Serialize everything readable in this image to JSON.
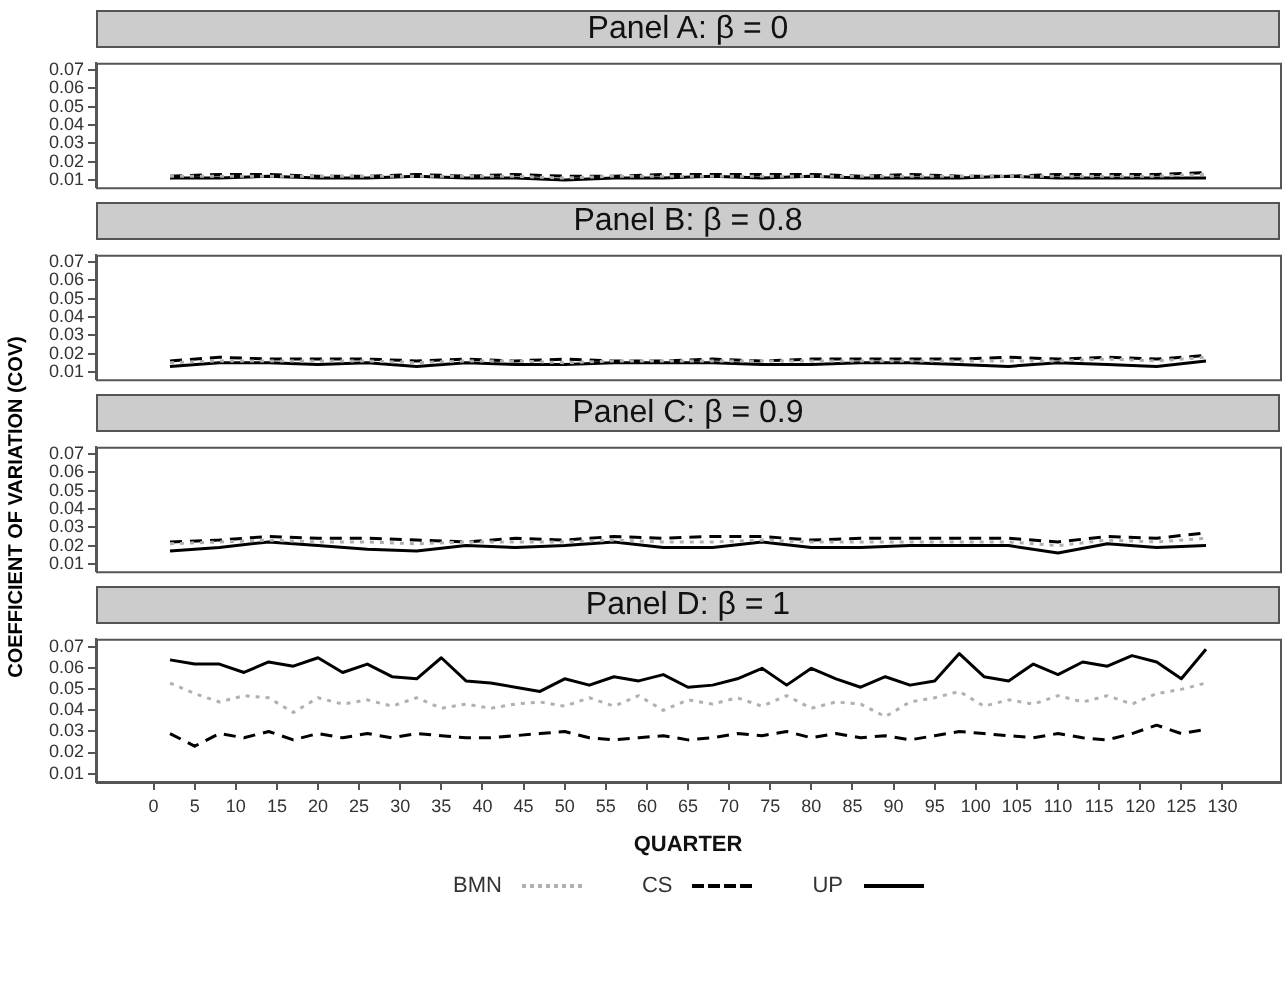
{
  "chart_data": [
    {
      "type": "line",
      "title": "Panel A: β = 0",
      "tick_labels": "y",
      "x": [
        2,
        8,
        14,
        20,
        26,
        32,
        38,
        44,
        50,
        56,
        62,
        68,
        74,
        80,
        86,
        92,
        98,
        104,
        110,
        116,
        122,
        128
      ],
      "xlim": [
        -7,
        137
      ],
      "xticks": [
        0,
        5,
        10,
        15,
        20,
        25,
        30,
        35,
        40,
        45,
        50,
        55,
        60,
        65,
        70,
        75,
        80,
        85,
        90,
        95,
        100,
        105,
        110,
        115,
        120,
        125,
        130
      ],
      "ylim": [
        0.006,
        0.074
      ],
      "yticks": [
        0.01,
        0.02,
        0.03,
        0.04,
        0.05,
        0.06,
        0.07
      ],
      "series": [
        {
          "color": "#b0b0b0",
          "line_style": "dotted",
          "values": [
            0.012,
            0.012,
            0.012,
            0.012,
            0.012,
            0.012,
            0.012,
            0.012,
            0.011,
            0.012,
            0.012,
            0.012,
            0.012,
            0.012,
            0.012,
            0.012,
            0.012,
            0.012,
            0.012,
            0.012,
            0.012,
            0.013
          ]
        },
        {
          "color": "#000000",
          "line_style": "dashed",
          "values": [
            0.012,
            0.013,
            0.013,
            0.012,
            0.012,
            0.013,
            0.012,
            0.013,
            0.012,
            0.012,
            0.013,
            0.013,
            0.013,
            0.013,
            0.012,
            0.013,
            0.012,
            0.012,
            0.013,
            0.013,
            0.013,
            0.014
          ]
        },
        {
          "color": "#000000",
          "line_style": "solid",
          "values": [
            0.011,
            0.011,
            0.012,
            0.011,
            0.011,
            0.012,
            0.011,
            0.011,
            0.01,
            0.011,
            0.011,
            0.012,
            0.011,
            0.012,
            0.011,
            0.011,
            0.011,
            0.012,
            0.011,
            0.011,
            0.011,
            0.011
          ]
        }
      ]
    },
    {
      "type": "line",
      "title": "Panel B: β = 0.8",
      "tick_labels": "y",
      "x": [
        2,
        8,
        14,
        20,
        26,
        32,
        38,
        44,
        50,
        56,
        62,
        68,
        74,
        80,
        86,
        92,
        98,
        104,
        110,
        116,
        122,
        128
      ],
      "xlim": [
        -7,
        137
      ],
      "xticks": [
        0,
        5,
        10,
        15,
        20,
        25,
        30,
        35,
        40,
        45,
        50,
        55,
        60,
        65,
        70,
        75,
        80,
        85,
        90,
        95,
        100,
        105,
        110,
        115,
        120,
        125,
        130
      ],
      "ylim": [
        0.006,
        0.074
      ],
      "yticks": [
        0.01,
        0.02,
        0.03,
        0.04,
        0.05,
        0.06,
        0.07
      ],
      "series": [
        {
          "color": "#b0b0b0",
          "line_style": "dotted",
          "values": [
            0.015,
            0.016,
            0.016,
            0.016,
            0.016,
            0.015,
            0.016,
            0.016,
            0.015,
            0.016,
            0.016,
            0.016,
            0.016,
            0.016,
            0.016,
            0.016,
            0.016,
            0.016,
            0.016,
            0.017,
            0.016,
            0.018
          ]
        },
        {
          "color": "#000000",
          "line_style": "dashed",
          "values": [
            0.016,
            0.018,
            0.017,
            0.017,
            0.017,
            0.016,
            0.017,
            0.016,
            0.017,
            0.016,
            0.016,
            0.017,
            0.016,
            0.017,
            0.017,
            0.017,
            0.017,
            0.018,
            0.017,
            0.018,
            0.017,
            0.019
          ]
        },
        {
          "color": "#000000",
          "line_style": "solid",
          "values": [
            0.013,
            0.015,
            0.015,
            0.014,
            0.015,
            0.013,
            0.015,
            0.014,
            0.014,
            0.015,
            0.015,
            0.015,
            0.014,
            0.014,
            0.015,
            0.015,
            0.014,
            0.013,
            0.015,
            0.014,
            0.013,
            0.016
          ]
        }
      ]
    },
    {
      "type": "line",
      "title": "Panel C: β = 0.9",
      "ylabel": "COEFFICIENT OF VARIATION (COV)",
      "tick_labels": "y",
      "x": [
        2,
        8,
        14,
        20,
        26,
        32,
        38,
        44,
        50,
        56,
        62,
        68,
        74,
        80,
        86,
        92,
        98,
        104,
        110,
        116,
        122,
        128
      ],
      "xlim": [
        -7,
        137
      ],
      "xticks": [
        0,
        5,
        10,
        15,
        20,
        25,
        30,
        35,
        40,
        45,
        50,
        55,
        60,
        65,
        70,
        75,
        80,
        85,
        90,
        95,
        100,
        105,
        110,
        115,
        120,
        125,
        130
      ],
      "ylim": [
        0.006,
        0.074
      ],
      "yticks": [
        0.01,
        0.02,
        0.03,
        0.04,
        0.05,
        0.06,
        0.07
      ],
      "series": [
        {
          "color": "#b0b0b0",
          "line_style": "dotted",
          "values": [
            0.021,
            0.022,
            0.023,
            0.022,
            0.022,
            0.021,
            0.022,
            0.022,
            0.022,
            0.023,
            0.022,
            0.022,
            0.023,
            0.022,
            0.022,
            0.022,
            0.022,
            0.022,
            0.02,
            0.023,
            0.022,
            0.024
          ]
        },
        {
          "color": "#000000",
          "line_style": "dashed",
          "values": [
            0.022,
            0.023,
            0.025,
            0.024,
            0.024,
            0.023,
            0.022,
            0.024,
            0.023,
            0.025,
            0.024,
            0.025,
            0.025,
            0.023,
            0.024,
            0.024,
            0.024,
            0.024,
            0.022,
            0.025,
            0.024,
            0.027
          ]
        },
        {
          "color": "#000000",
          "line_style": "solid",
          "values": [
            0.017,
            0.019,
            0.022,
            0.02,
            0.018,
            0.017,
            0.02,
            0.019,
            0.02,
            0.022,
            0.019,
            0.019,
            0.022,
            0.019,
            0.019,
            0.02,
            0.02,
            0.02,
            0.016,
            0.021,
            0.019,
            0.02
          ]
        }
      ]
    },
    {
      "type": "line",
      "title": "Panel D: β = 1",
      "xlabel": "QUARTER",
      "legend": "bottom",
      "x": [
        2,
        5,
        8,
        11,
        14,
        17,
        20,
        23,
        26,
        29,
        32,
        35,
        38,
        41,
        44,
        47,
        50,
        53,
        56,
        59,
        62,
        65,
        68,
        71,
        74,
        77,
        80,
        83,
        86,
        89,
        92,
        95,
        98,
        101,
        104,
        107,
        110,
        113,
        116,
        119,
        122,
        125,
        128
      ],
      "xlim": [
        -7,
        137
      ],
      "xticks": [
        0,
        5,
        10,
        15,
        20,
        25,
        30,
        35,
        40,
        45,
        50,
        55,
        60,
        65,
        70,
        75,
        80,
        85,
        90,
        95,
        100,
        105,
        110,
        115,
        120,
        125,
        130
      ],
      "ylim": [
        0.006,
        0.074
      ],
      "yticks": [
        0.01,
        0.02,
        0.03,
        0.04,
        0.05,
        0.06,
        0.07
      ],
      "series": [
        {
          "name": "BMN",
          "color": "#b0b0b0",
          "line_style": "dotted",
          "values": [
            0.053,
            0.048,
            0.044,
            0.047,
            0.046,
            0.039,
            0.046,
            0.043,
            0.045,
            0.042,
            0.046,
            0.041,
            0.043,
            0.041,
            0.043,
            0.044,
            0.042,
            0.046,
            0.042,
            0.047,
            0.04,
            0.045,
            0.043,
            0.046,
            0.042,
            0.047,
            0.041,
            0.044,
            0.043,
            0.037,
            0.044,
            0.046,
            0.049,
            0.042,
            0.045,
            0.043,
            0.047,
            0.044,
            0.047,
            0.043,
            0.048,
            0.05,
            0.053
          ]
        },
        {
          "name": "CS",
          "color": "#000000",
          "line_style": "dashed",
          "values": [
            0.029,
            0.023,
            0.029,
            0.027,
            0.03,
            0.026,
            0.029,
            0.027,
            0.029,
            0.027,
            0.029,
            0.028,
            0.027,
            0.027,
            0.028,
            0.029,
            0.03,
            0.027,
            0.026,
            0.027,
            0.028,
            0.026,
            0.027,
            0.029,
            0.028,
            0.03,
            0.027,
            0.029,
            0.027,
            0.028,
            0.026,
            0.028,
            0.03,
            0.029,
            0.028,
            0.027,
            0.029,
            0.027,
            0.026,
            0.029,
            0.033,
            0.029,
            0.031
          ]
        },
        {
          "name": "UP",
          "color": "#000000",
          "line_style": "solid",
          "values": [
            0.064,
            0.062,
            0.062,
            0.058,
            0.063,
            0.061,
            0.065,
            0.058,
            0.062,
            0.056,
            0.055,
            0.065,
            0.054,
            0.053,
            0.051,
            0.049,
            0.055,
            0.052,
            0.056,
            0.054,
            0.057,
            0.051,
            0.052,
            0.055,
            0.06,
            0.052,
            0.06,
            0.055,
            0.051,
            0.056,
            0.052,
            0.054,
            0.067,
            0.056,
            0.054,
            0.062,
            0.057,
            0.063,
            0.061,
            0.066,
            0.063,
            0.055,
            0.069
          ]
        }
      ]
    }
  ]
}
